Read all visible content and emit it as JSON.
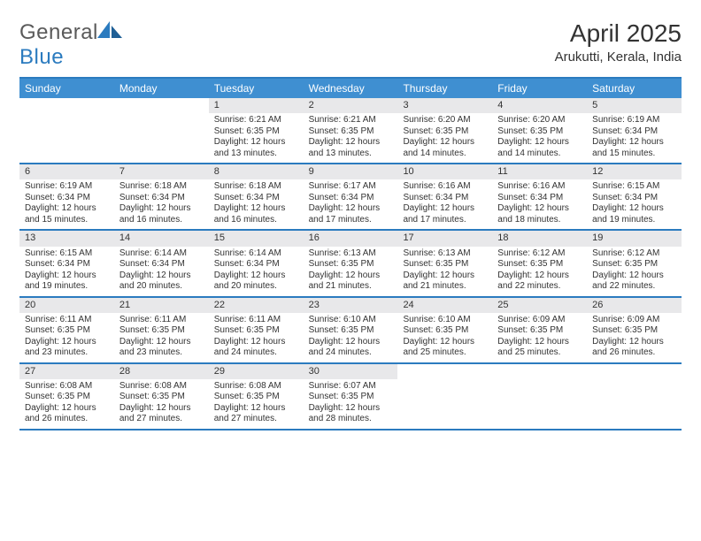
{
  "brand": {
    "part1": "General",
    "part2": "Blue"
  },
  "title": "April 2025",
  "location": "Arukutti, Kerala, India",
  "colors": {
    "accent": "#3f8fd1",
    "accent_border": "#2b7bbf",
    "daybar": "#e8e8ea",
    "text": "#333333",
    "background": "#ffffff"
  },
  "typography": {
    "title_fontsize": 28,
    "location_fontsize": 15,
    "dayhead_fontsize": 12,
    "datenum_fontsize": 11,
    "body_fontsize": 10
  },
  "day_headers": [
    "Sunday",
    "Monday",
    "Tuesday",
    "Wednesday",
    "Thursday",
    "Friday",
    "Saturday"
  ],
  "weeks": [
    [
      null,
      null,
      {
        "n": "1",
        "sunrise": "Sunrise: 6:21 AM",
        "sunset": "Sunset: 6:35 PM",
        "day1": "Daylight: 12 hours",
        "day2": "and 13 minutes."
      },
      {
        "n": "2",
        "sunrise": "Sunrise: 6:21 AM",
        "sunset": "Sunset: 6:35 PM",
        "day1": "Daylight: 12 hours",
        "day2": "and 13 minutes."
      },
      {
        "n": "3",
        "sunrise": "Sunrise: 6:20 AM",
        "sunset": "Sunset: 6:35 PM",
        "day1": "Daylight: 12 hours",
        "day2": "and 14 minutes."
      },
      {
        "n": "4",
        "sunrise": "Sunrise: 6:20 AM",
        "sunset": "Sunset: 6:35 PM",
        "day1": "Daylight: 12 hours",
        "day2": "and 14 minutes."
      },
      {
        "n": "5",
        "sunrise": "Sunrise: 6:19 AM",
        "sunset": "Sunset: 6:34 PM",
        "day1": "Daylight: 12 hours",
        "day2": "and 15 minutes."
      }
    ],
    [
      {
        "n": "6",
        "sunrise": "Sunrise: 6:19 AM",
        "sunset": "Sunset: 6:34 PM",
        "day1": "Daylight: 12 hours",
        "day2": "and 15 minutes."
      },
      {
        "n": "7",
        "sunrise": "Sunrise: 6:18 AM",
        "sunset": "Sunset: 6:34 PM",
        "day1": "Daylight: 12 hours",
        "day2": "and 16 minutes."
      },
      {
        "n": "8",
        "sunrise": "Sunrise: 6:18 AM",
        "sunset": "Sunset: 6:34 PM",
        "day1": "Daylight: 12 hours",
        "day2": "and 16 minutes."
      },
      {
        "n": "9",
        "sunrise": "Sunrise: 6:17 AM",
        "sunset": "Sunset: 6:34 PM",
        "day1": "Daylight: 12 hours",
        "day2": "and 17 minutes."
      },
      {
        "n": "10",
        "sunrise": "Sunrise: 6:16 AM",
        "sunset": "Sunset: 6:34 PM",
        "day1": "Daylight: 12 hours",
        "day2": "and 17 minutes."
      },
      {
        "n": "11",
        "sunrise": "Sunrise: 6:16 AM",
        "sunset": "Sunset: 6:34 PM",
        "day1": "Daylight: 12 hours",
        "day2": "and 18 minutes."
      },
      {
        "n": "12",
        "sunrise": "Sunrise: 6:15 AM",
        "sunset": "Sunset: 6:34 PM",
        "day1": "Daylight: 12 hours",
        "day2": "and 19 minutes."
      }
    ],
    [
      {
        "n": "13",
        "sunrise": "Sunrise: 6:15 AM",
        "sunset": "Sunset: 6:34 PM",
        "day1": "Daylight: 12 hours",
        "day2": "and 19 minutes."
      },
      {
        "n": "14",
        "sunrise": "Sunrise: 6:14 AM",
        "sunset": "Sunset: 6:34 PM",
        "day1": "Daylight: 12 hours",
        "day2": "and 20 minutes."
      },
      {
        "n": "15",
        "sunrise": "Sunrise: 6:14 AM",
        "sunset": "Sunset: 6:34 PM",
        "day1": "Daylight: 12 hours",
        "day2": "and 20 minutes."
      },
      {
        "n": "16",
        "sunrise": "Sunrise: 6:13 AM",
        "sunset": "Sunset: 6:35 PM",
        "day1": "Daylight: 12 hours",
        "day2": "and 21 minutes."
      },
      {
        "n": "17",
        "sunrise": "Sunrise: 6:13 AM",
        "sunset": "Sunset: 6:35 PM",
        "day1": "Daylight: 12 hours",
        "day2": "and 21 minutes."
      },
      {
        "n": "18",
        "sunrise": "Sunrise: 6:12 AM",
        "sunset": "Sunset: 6:35 PM",
        "day1": "Daylight: 12 hours",
        "day2": "and 22 minutes."
      },
      {
        "n": "19",
        "sunrise": "Sunrise: 6:12 AM",
        "sunset": "Sunset: 6:35 PM",
        "day1": "Daylight: 12 hours",
        "day2": "and 22 minutes."
      }
    ],
    [
      {
        "n": "20",
        "sunrise": "Sunrise: 6:11 AM",
        "sunset": "Sunset: 6:35 PM",
        "day1": "Daylight: 12 hours",
        "day2": "and 23 minutes."
      },
      {
        "n": "21",
        "sunrise": "Sunrise: 6:11 AM",
        "sunset": "Sunset: 6:35 PM",
        "day1": "Daylight: 12 hours",
        "day2": "and 23 minutes."
      },
      {
        "n": "22",
        "sunrise": "Sunrise: 6:11 AM",
        "sunset": "Sunset: 6:35 PM",
        "day1": "Daylight: 12 hours",
        "day2": "and 24 minutes."
      },
      {
        "n": "23",
        "sunrise": "Sunrise: 6:10 AM",
        "sunset": "Sunset: 6:35 PM",
        "day1": "Daylight: 12 hours",
        "day2": "and 24 minutes."
      },
      {
        "n": "24",
        "sunrise": "Sunrise: 6:10 AM",
        "sunset": "Sunset: 6:35 PM",
        "day1": "Daylight: 12 hours",
        "day2": "and 25 minutes."
      },
      {
        "n": "25",
        "sunrise": "Sunrise: 6:09 AM",
        "sunset": "Sunset: 6:35 PM",
        "day1": "Daylight: 12 hours",
        "day2": "and 25 minutes."
      },
      {
        "n": "26",
        "sunrise": "Sunrise: 6:09 AM",
        "sunset": "Sunset: 6:35 PM",
        "day1": "Daylight: 12 hours",
        "day2": "and 26 minutes."
      }
    ],
    [
      {
        "n": "27",
        "sunrise": "Sunrise: 6:08 AM",
        "sunset": "Sunset: 6:35 PM",
        "day1": "Daylight: 12 hours",
        "day2": "and 26 minutes."
      },
      {
        "n": "28",
        "sunrise": "Sunrise: 6:08 AM",
        "sunset": "Sunset: 6:35 PM",
        "day1": "Daylight: 12 hours",
        "day2": "and 27 minutes."
      },
      {
        "n": "29",
        "sunrise": "Sunrise: 6:08 AM",
        "sunset": "Sunset: 6:35 PM",
        "day1": "Daylight: 12 hours",
        "day2": "and 27 minutes."
      },
      {
        "n": "30",
        "sunrise": "Sunrise: 6:07 AM",
        "sunset": "Sunset: 6:35 PM",
        "day1": "Daylight: 12 hours",
        "day2": "and 28 minutes."
      },
      null,
      null,
      null
    ]
  ]
}
